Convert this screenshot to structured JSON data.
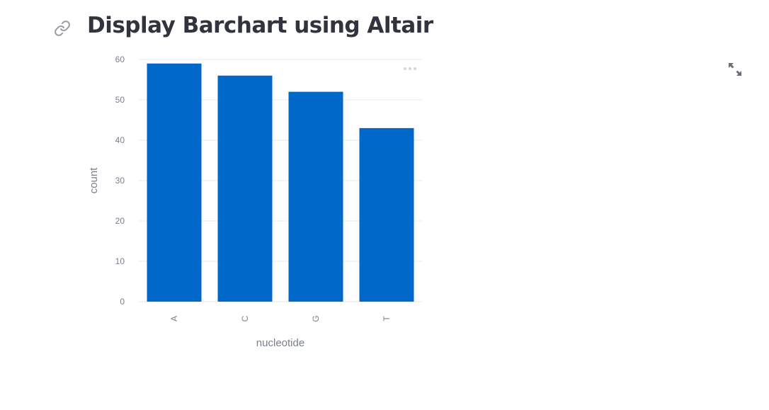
{
  "page": {
    "title": "Display Barchart using Altair"
  },
  "icons": {
    "link": "link-icon",
    "expand": "fullscreen-expand-icon",
    "menu": "more-horizontal-icon"
  },
  "chart_data": {
    "type": "bar",
    "title": "",
    "xlabel": "nucleotide",
    "ylabel": "count",
    "categories": [
      "A",
      "C",
      "G",
      "T"
    ],
    "values": [
      59,
      56,
      52,
      43
    ],
    "ylim": [
      0,
      60
    ],
    "yticks": [
      0,
      10,
      20,
      30,
      40,
      50,
      60
    ],
    "grid": true,
    "color": "#0068c9"
  }
}
